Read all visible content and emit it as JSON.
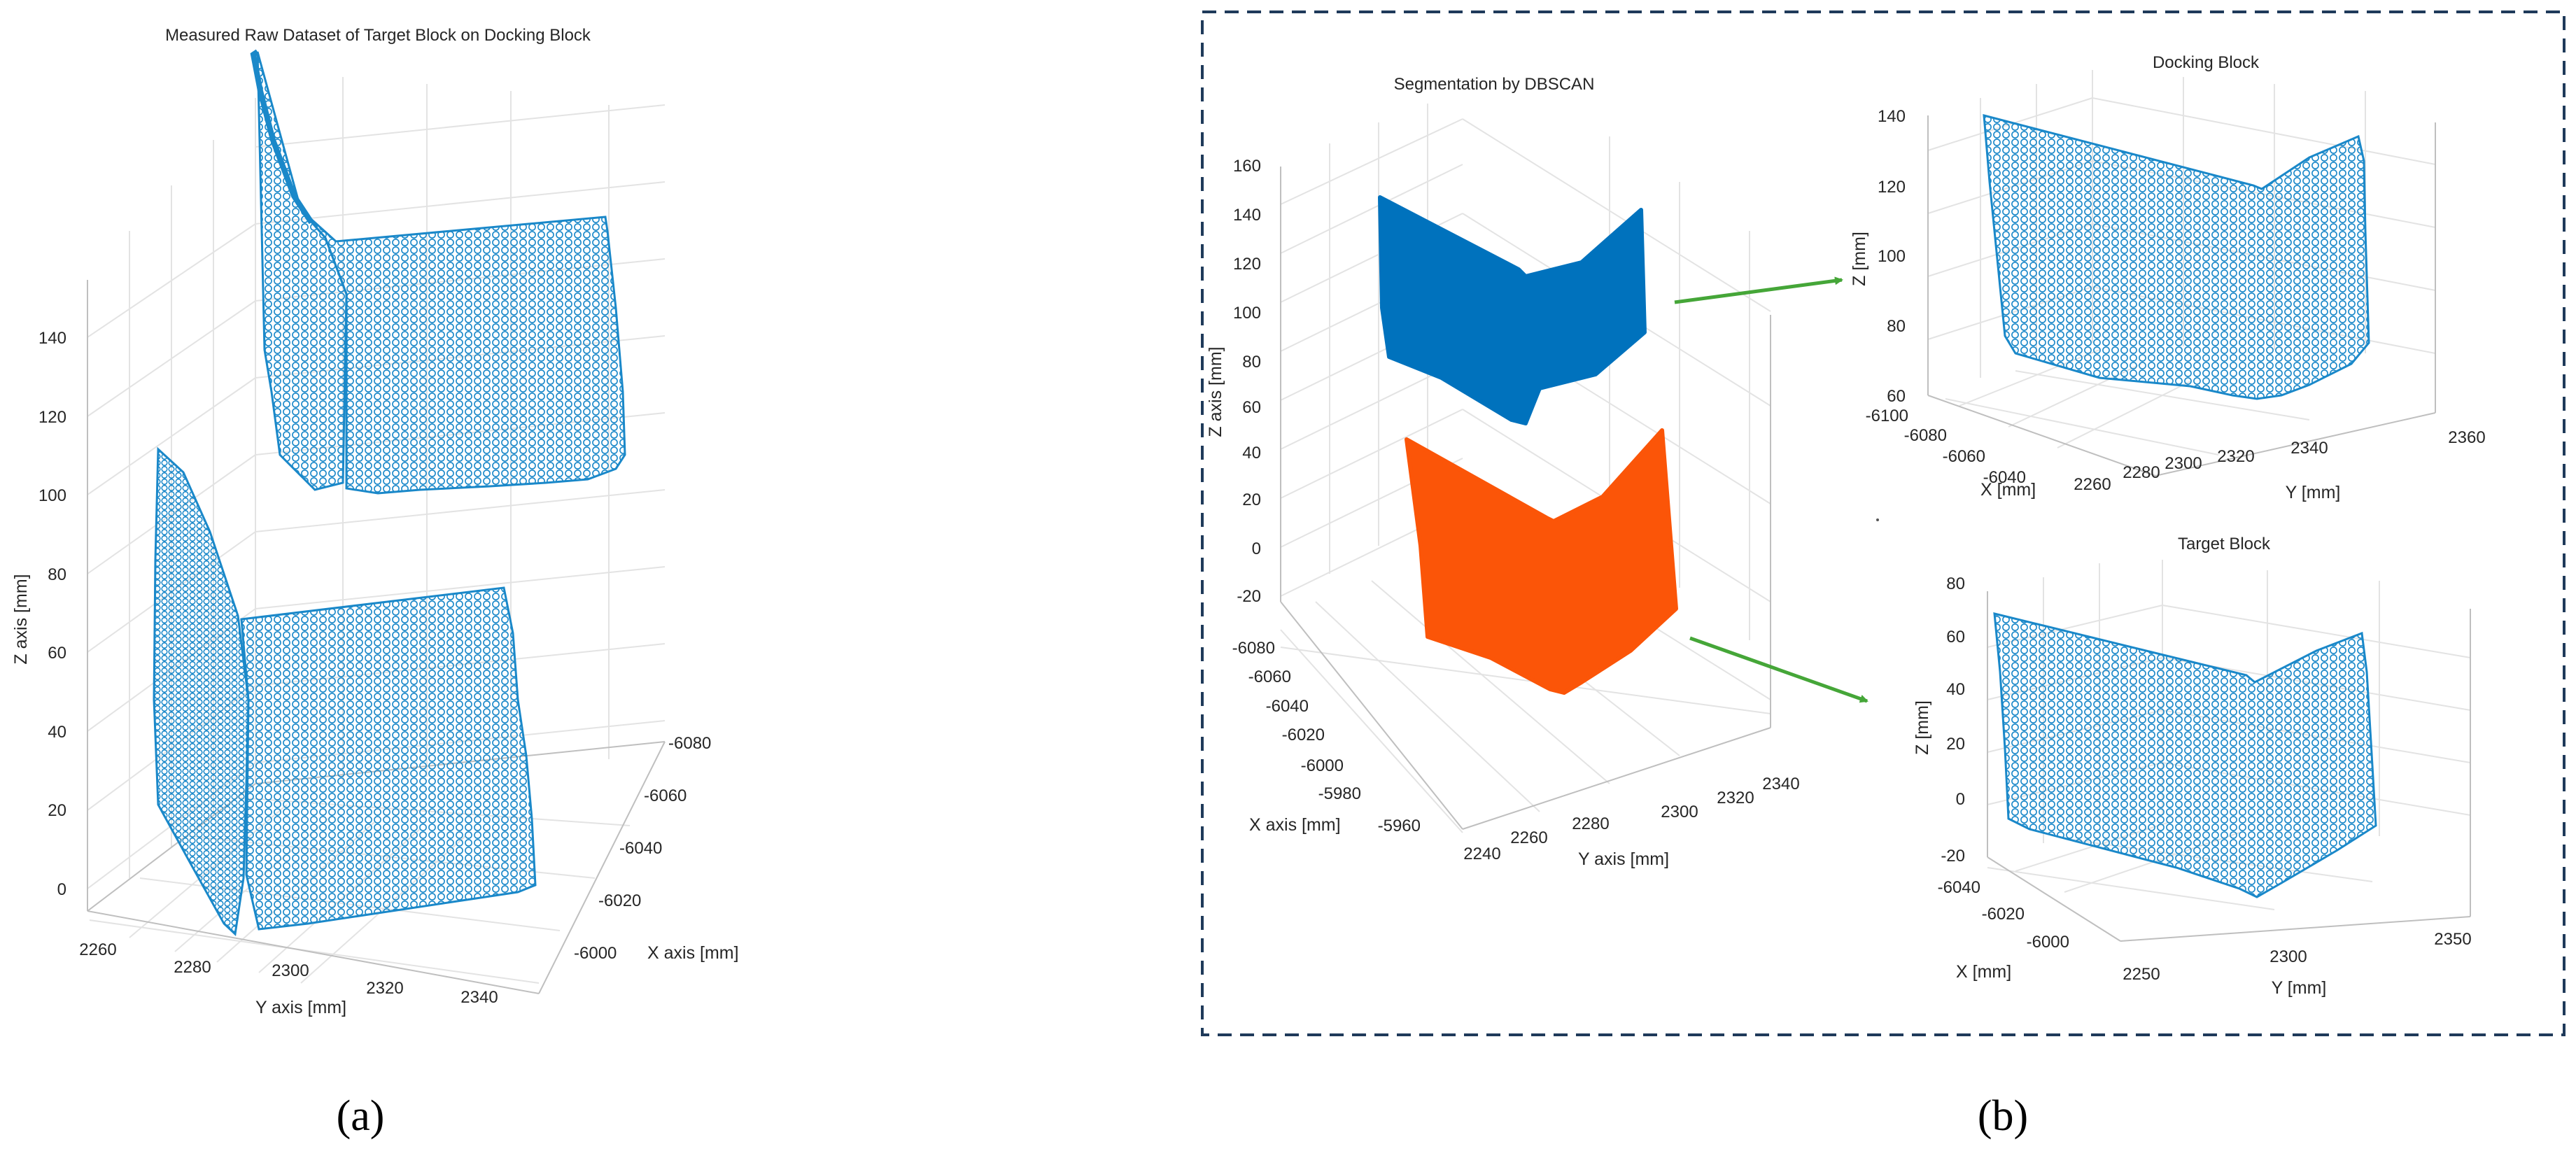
{
  "panels": {
    "a": {
      "label": "(a)"
    },
    "b": {
      "label": "(b)"
    }
  },
  "colors": {
    "points": "#1a88c9",
    "docking_cluster": "#0072bd",
    "target_cluster": "#fb5508",
    "arrow": "#45a638",
    "dashed_border": "#1f3a5a"
  },
  "chart_data": [
    {
      "id": "raw",
      "type": "scatter",
      "projection": "3d",
      "title": "Measured Raw Dataset of Target Block on Docking Block",
      "xlabel": "X axis [mm]",
      "ylabel": "Y axis [mm]",
      "zlabel": "Z axis [mm]",
      "x_ticks": [
        "-6080",
        "-6060",
        "-6040",
        "-6020",
        "-6000"
      ],
      "y_ticks": [
        "2260",
        "2280",
        "2300",
        "2320",
        "2340"
      ],
      "z_ticks": [
        "0",
        "20",
        "40",
        "60",
        "80",
        "100",
        "120",
        "140"
      ],
      "xlim": [
        -6090,
        -5995
      ],
      "ylim": [
        2255,
        2350
      ],
      "zlim": [
        -10,
        160
      ],
      "marker": "open-circle",
      "grid": true,
      "series": [
        {
          "shape": "corner-block",
          "zrange": [
            95,
            165
          ]
        },
        {
          "shape": "corner-block",
          "zrange": [
            -10,
            110
          ]
        }
      ]
    },
    {
      "id": "dbscan",
      "type": "scatter",
      "projection": "3d",
      "title": "Segmentation by DBSCAN",
      "xlabel": "X axis [mm]",
      "ylabel": "Y axis [mm]",
      "zlabel": "Z axis [mm]",
      "x_ticks": [
        "-6080",
        "-6060",
        "-6040",
        "-6020",
        "-6000",
        "-5980",
        "-5960"
      ],
      "y_ticks": [
        "2240",
        "2260",
        "2280",
        "2300",
        "2320",
        "2340"
      ],
      "z_ticks": [
        "-20",
        "0",
        "20",
        "40",
        "60",
        "80",
        "100",
        "120",
        "140",
        "160"
      ],
      "zlim": [
        -20,
        160
      ],
      "grid": true,
      "series": [
        {
          "cluster": 1,
          "zrange": [
            60,
            145
          ]
        },
        {
          "cluster": 2,
          "zrange": [
            -20,
            55
          ]
        }
      ]
    },
    {
      "id": "docking",
      "type": "scatter",
      "projection": "3d",
      "title": "Docking Block",
      "xlabel": "X [mm]",
      "ylabel": "Y [mm]",
      "zlabel": "Z [mm]",
      "x_ticks": [
        "-6100",
        "-6080",
        "-6060",
        "-6040"
      ],
      "y_ticks": [
        "2260",
        "2280",
        "2300",
        "2320",
        "2340",
        "2360"
      ],
      "z_ticks": [
        "60",
        "80",
        "100",
        "120",
        "140"
      ],
      "zlim": [
        60,
        140
      ],
      "marker": "open-circle",
      "grid": true
    },
    {
      "id": "target",
      "type": "scatter",
      "projection": "3d",
      "title": "Target Block",
      "xlabel": "X [mm]",
      "ylabel": "Y [mm]",
      "zlabel": "Z [mm]",
      "x_ticks": [
        "-6040",
        "-6020",
        "-6000"
      ],
      "y_ticks": [
        "2250",
        "2300",
        "2350"
      ],
      "z_ticks": [
        "-20",
        "0",
        "20",
        "40",
        "60",
        "80"
      ],
      "zlim": [
        -20,
        80
      ],
      "marker": "open-circle",
      "grid": true
    }
  ]
}
